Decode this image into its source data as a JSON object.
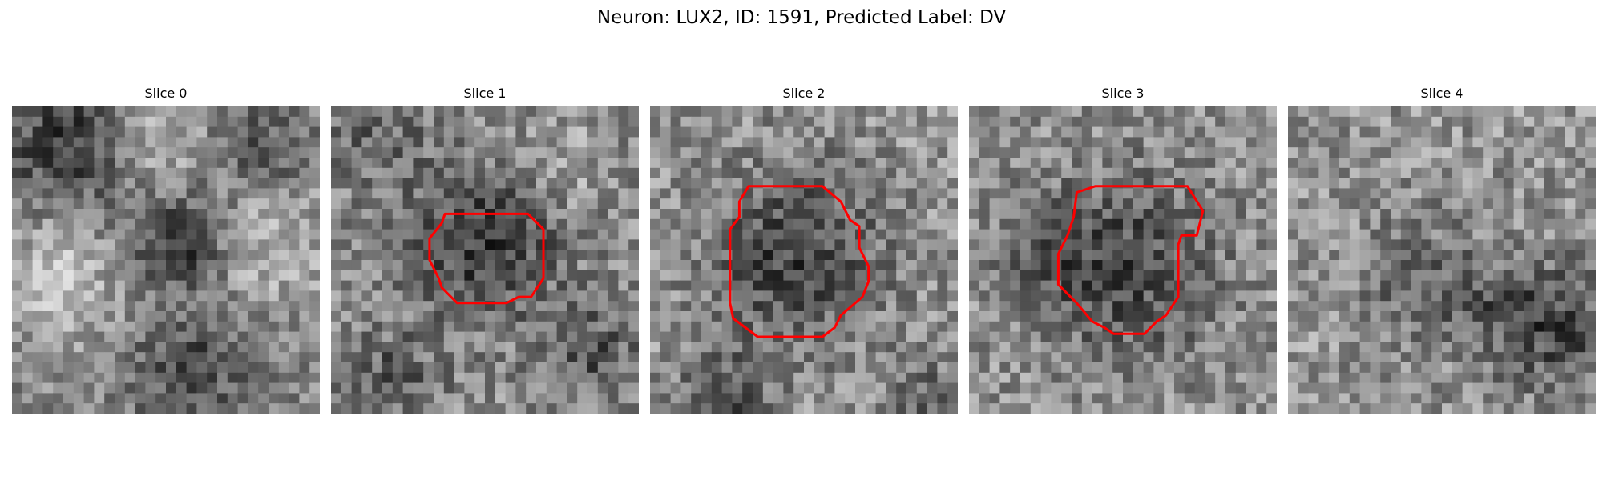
{
  "figure": {
    "title": "Neuron: LUX2, ID: 1591, Predicted Label: DV"
  },
  "contour_color": "#ff0000",
  "colormap": "gray",
  "panels": [
    {
      "title": "Slice 0",
      "seed": 11,
      "base": 0.52,
      "noise": 0.18,
      "blobs": [
        [
          0.2,
          0.12,
          0.16,
          -0.3
        ],
        [
          0.55,
          0.45,
          0.1,
          -0.35
        ],
        [
          0.58,
          0.85,
          0.12,
          -0.25
        ],
        [
          0.15,
          0.55,
          0.15,
          0.22
        ],
        [
          0.85,
          0.45,
          0.14,
          0.2
        ],
        [
          0.45,
          0.1,
          0.12,
          0.22
        ],
        [
          0.8,
          0.15,
          0.1,
          -0.2
        ]
      ],
      "contour": []
    },
    {
      "title": "Slice 1",
      "seed": 23,
      "base": 0.55,
      "noise": 0.2,
      "blobs": [
        [
          0.5,
          0.45,
          0.17,
          -0.32
        ],
        [
          0.2,
          0.88,
          0.1,
          -0.2
        ],
        [
          0.85,
          0.8,
          0.1,
          -0.22
        ],
        [
          0.15,
          0.1,
          0.12,
          -0.15
        ],
        [
          0.75,
          0.2,
          0.1,
          0.12
        ]
      ],
      "contour": [
        [
          0.37,
          0.35
        ],
        [
          0.64,
          0.35
        ],
        [
          0.69,
          0.4
        ],
        [
          0.69,
          0.56
        ],
        [
          0.65,
          0.62
        ],
        [
          0.61,
          0.62
        ],
        [
          0.57,
          0.64
        ],
        [
          0.41,
          0.64
        ],
        [
          0.36,
          0.59
        ],
        [
          0.35,
          0.56
        ],
        [
          0.32,
          0.5
        ],
        [
          0.32,
          0.43
        ],
        [
          0.36,
          0.38
        ]
      ]
    },
    {
      "title": "Slice 2",
      "seed": 37,
      "base": 0.58,
      "noise": 0.2,
      "blobs": [
        [
          0.47,
          0.49,
          0.2,
          -0.32
        ],
        [
          0.25,
          0.95,
          0.1,
          -0.25
        ],
        [
          0.9,
          0.95,
          0.1,
          -0.18
        ]
      ],
      "contour": [
        [
          0.32,
          0.26
        ],
        [
          0.56,
          0.26
        ],
        [
          0.62,
          0.31
        ],
        [
          0.65,
          0.37
        ],
        [
          0.68,
          0.39
        ],
        [
          0.68,
          0.46
        ],
        [
          0.71,
          0.52
        ],
        [
          0.71,
          0.57
        ],
        [
          0.69,
          0.62
        ],
        [
          0.62,
          0.68
        ],
        [
          0.6,
          0.72
        ],
        [
          0.56,
          0.75
        ],
        [
          0.35,
          0.75
        ],
        [
          0.27,
          0.69
        ],
        [
          0.26,
          0.64
        ],
        [
          0.26,
          0.4
        ],
        [
          0.29,
          0.36
        ],
        [
          0.29,
          0.31
        ]
      ]
    },
    {
      "title": "Slice 3",
      "seed": 53,
      "base": 0.58,
      "noise": 0.2,
      "blobs": [
        [
          0.5,
          0.52,
          0.22,
          -0.3
        ],
        [
          0.22,
          0.5,
          0.1,
          -0.12
        ]
      ],
      "contour": [
        [
          0.41,
          0.26
        ],
        [
          0.71,
          0.26
        ],
        [
          0.76,
          0.34
        ],
        [
          0.74,
          0.42
        ],
        [
          0.69,
          0.42
        ],
        [
          0.68,
          0.45
        ],
        [
          0.68,
          0.62
        ],
        [
          0.64,
          0.68
        ],
        [
          0.61,
          0.7
        ],
        [
          0.57,
          0.74
        ],
        [
          0.53,
          0.74
        ],
        [
          0.47,
          0.74
        ],
        [
          0.44,
          0.72
        ],
        [
          0.4,
          0.7
        ],
        [
          0.35,
          0.64
        ],
        [
          0.29,
          0.58
        ],
        [
          0.29,
          0.48
        ],
        [
          0.32,
          0.42
        ],
        [
          0.34,
          0.36
        ],
        [
          0.35,
          0.28
        ]
      ]
    },
    {
      "title": "Slice 4",
      "seed": 71,
      "base": 0.58,
      "noise": 0.2,
      "blobs": [
        [
          0.45,
          0.58,
          0.15,
          -0.18
        ],
        [
          0.88,
          0.72,
          0.15,
          -0.28
        ],
        [
          0.7,
          0.65,
          0.1,
          -0.12
        ]
      ],
      "contour": []
    }
  ]
}
